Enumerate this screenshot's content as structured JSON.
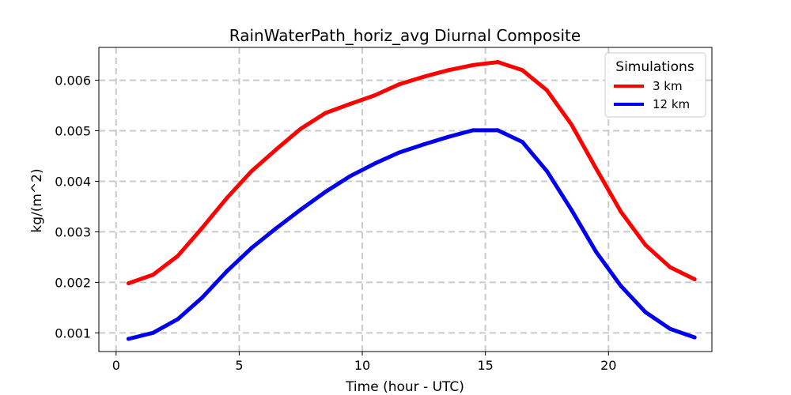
{
  "chart_data": {
    "type": "line",
    "title": "RainWaterPath_horiz_avg Diurnal Composite",
    "xlabel": "Time (hour - UTC)",
    "ylabel": "kg/(m^2)",
    "xlim": [
      -0.7,
      24.2
    ],
    "ylim": [
      0.00063,
      0.00665
    ],
    "x_ticks": [
      0,
      5,
      10,
      15,
      20
    ],
    "y_ticks": [
      0.001,
      0.002,
      0.003,
      0.004,
      0.005,
      0.006
    ],
    "x_tick_labels": [
      "0",
      "5",
      "10",
      "15",
      "20"
    ],
    "y_tick_labels": [
      "0.001",
      "0.002",
      "0.003",
      "0.004",
      "0.005",
      "0.006"
    ],
    "grid": true,
    "legend": {
      "title": "Simulations",
      "placement": "top-right"
    },
    "x": [
      0.5,
      1.5,
      2.5,
      3.5,
      4.5,
      5.5,
      6.5,
      7.5,
      8.5,
      9.5,
      10.5,
      11.5,
      12.5,
      13.5,
      14.5,
      15.5,
      16.5,
      17.5,
      18.5,
      19.5,
      20.5,
      21.5,
      22.5,
      23.5
    ],
    "series": [
      {
        "name": "3 km",
        "color": "#ff0000",
        "values": [
          0.00198,
          0.00215,
          0.00252,
          0.00308,
          0.00367,
          0.0042,
          0.00463,
          0.00504,
          0.00535,
          0.00553,
          0.0057,
          0.00592,
          0.00607,
          0.0062,
          0.0063,
          0.00636,
          0.0062,
          0.0058,
          0.00512,
          0.00425,
          0.0034,
          0.00274,
          0.0023,
          0.00206
        ]
      },
      {
        "name": "12 km",
        "color": "#0000ee",
        "values": [
          0.00088,
          0.001,
          0.00127,
          0.0017,
          0.00222,
          0.00268,
          0.00307,
          0.00344,
          0.00379,
          0.0041,
          0.00435,
          0.00457,
          0.00473,
          0.00488,
          0.00501,
          0.00501,
          0.00478,
          0.0042,
          0.00343,
          0.0026,
          0.00193,
          0.00141,
          0.00108,
          0.00091
        ]
      }
    ]
  }
}
